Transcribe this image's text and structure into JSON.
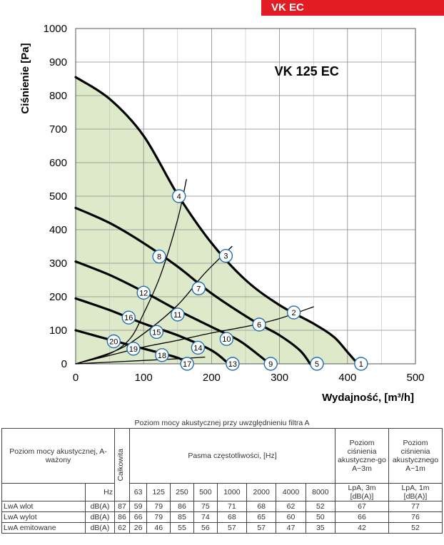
{
  "badge": "VK EC",
  "chart_data": {
    "type": "line",
    "title": "VK 125 EC",
    "xlabel": "Wydajność, [m³/h]",
    "ylabel": "Ciśnienie [Pa]",
    "xlim": [
      0,
      500
    ],
    "ylim": [
      0,
      1000
    ],
    "xticks": [
      0,
      100,
      200,
      300,
      400,
      500
    ],
    "yticks": [
      0,
      100,
      200,
      300,
      400,
      500,
      600,
      700,
      800,
      900,
      1000
    ],
    "grid": true,
    "series": [
      {
        "points": [
          [
            0,
            855
          ],
          [
            50,
            790
          ],
          [
            100,
            680
          ],
          [
            150,
            505
          ],
          [
            200,
            360
          ],
          [
            250,
            250
          ],
          [
            300,
            175
          ],
          [
            350,
            120
          ],
          [
            380,
            80
          ],
          [
            400,
            35
          ],
          [
            415,
            0
          ]
        ]
      },
      {
        "points": [
          [
            0,
            465
          ],
          [
            50,
            420
          ],
          [
            100,
            360
          ],
          [
            150,
            290
          ],
          [
            200,
            210
          ],
          [
            260,
            130
          ],
          [
            300,
            85
          ],
          [
            330,
            40
          ],
          [
            345,
            0
          ]
        ]
      },
      {
        "points": [
          [
            0,
            305
          ],
          [
            50,
            265
          ],
          [
            100,
            215
          ],
          [
            150,
            160
          ],
          [
            200,
            110
          ],
          [
            240,
            70
          ],
          [
            270,
            25
          ],
          [
            285,
            0
          ]
        ]
      },
      {
        "points": [
          [
            0,
            195
          ],
          [
            50,
            160
          ],
          [
            100,
            120
          ],
          [
            150,
            85
          ],
          [
            200,
            40
          ],
          [
            225,
            0
          ]
        ]
      },
      {
        "points": [
          [
            0,
            100
          ],
          [
            50,
            72
          ],
          [
            100,
            45
          ],
          [
            150,
            18
          ],
          [
            165,
            0
          ]
        ]
      },
      {
        "points": [
          [
            0,
            0
          ],
          [
            50,
            25
          ],
          [
            100,
            50
          ],
          [
            150,
            70
          ],
          [
            200,
            92
          ],
          [
            260,
            115
          ],
          [
            300,
            135
          ],
          [
            350,
            170
          ]
        ]
      },
      {
        "points": [
          [
            0,
            0
          ],
          [
            60,
            40
          ],
          [
            100,
            90
          ],
          [
            150,
            175
          ],
          [
            190,
            270
          ],
          [
            230,
            350
          ]
        ]
      },
      {
        "points": [
          [
            0,
            0
          ],
          [
            50,
            30
          ],
          [
            80,
            75
          ],
          [
            100,
            150
          ],
          [
            125,
            265
          ],
          [
            150,
            430
          ],
          [
            163,
            550
          ]
        ]
      },
      {
        "points": [
          [
            0,
            0
          ],
          [
            100,
            10
          ],
          [
            150,
            15
          ],
          [
            190,
            20
          ]
        ]
      }
    ],
    "markers": [
      {
        "label": "1",
        "x": 420,
        "y": 0
      },
      {
        "label": "2",
        "x": 321,
        "y": 153
      },
      {
        "label": "3",
        "x": 221,
        "y": 322
      },
      {
        "label": "4",
        "x": 152,
        "y": 500
      },
      {
        "label": "5",
        "x": 355,
        "y": 0
      },
      {
        "label": "6",
        "x": 270,
        "y": 117
      },
      {
        "label": "7",
        "x": 181,
        "y": 225
      },
      {
        "label": "8",
        "x": 123,
        "y": 320
      },
      {
        "label": "9",
        "x": 287,
        "y": 0
      },
      {
        "label": "10",
        "x": 222,
        "y": 74
      },
      {
        "label": "11",
        "x": 150,
        "y": 147
      },
      {
        "label": "12",
        "x": 100,
        "y": 212
      },
      {
        "label": "13",
        "x": 231,
        "y": 0
      },
      {
        "label": "14",
        "x": 180,
        "y": 48
      },
      {
        "label": "15",
        "x": 119,
        "y": 95
      },
      {
        "label": "16",
        "x": 78,
        "y": 138
      },
      {
        "label": "17",
        "x": 164,
        "y": 0
      },
      {
        "label": "18",
        "x": 127,
        "y": 26
      },
      {
        "label": "19",
        "x": 85,
        "y": 45
      },
      {
        "label": "20",
        "x": 56,
        "y": 67
      }
    ]
  },
  "table": {
    "caption": "Poziom mocy akustycznej przy uwzględnieniu filtra A",
    "row_header": "Poziom mocy akustycznej, A-ważony",
    "total_label": "Całkowita",
    "bands_label": "Pasma częstotliwości, [Hz]",
    "lpa3_header": "Poziom ciśnienia akustyczne-go A~3m",
    "lpa1_header": "Poziom ciśnienia akustycznego A~1m",
    "hz_label": "Hz",
    "frequencies": [
      "63",
      "125",
      "250",
      "500",
      "1000",
      "2000",
      "4000",
      "8000"
    ],
    "lpa3_unit": "LpA, 3m [dB(A)]",
    "lpa1_unit": "LpA, 1m [dB(A)]",
    "rows": [
      {
        "label": "LwA wlot",
        "unit": "dB(A)",
        "total": "87",
        "values": [
          "59",
          "79",
          "86",
          "75",
          "71",
          "68",
          "62",
          "52"
        ],
        "lpa3": "67",
        "lpa1": "77"
      },
      {
        "label": "LwA wylot",
        "unit": "dB(A)",
        "total": "86",
        "values": [
          "66",
          "79",
          "85",
          "74",
          "68",
          "65",
          "60",
          "50"
        ],
        "lpa3": "66",
        "lpa1": "76"
      },
      {
        "label": "LwA emitowane",
        "unit": "dB(A)",
        "total": "62",
        "values": [
          "26",
          "46",
          "55",
          "56",
          "57",
          "57",
          "47",
          "35"
        ],
        "lpa3": "42",
        "lpa1": "52"
      }
    ]
  }
}
